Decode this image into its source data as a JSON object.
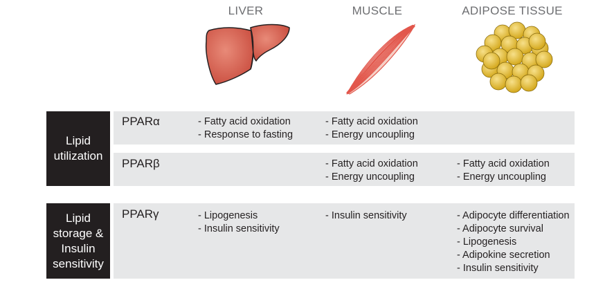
{
  "columns": [
    {
      "key": "liver",
      "title": "LIVER",
      "icon": "liver-icon"
    },
    {
      "key": "muscle",
      "title": "MUSCLE",
      "icon": "muscle-icon"
    },
    {
      "key": "adipose",
      "title": "ADIPOSE TISSUE",
      "icon": "adipose-tissue-icon"
    }
  ],
  "groups": {
    "lipid_utilization": "Lipid\nutilization",
    "lipid_storage": "Lipid\nstorage &\nInsulin\nsensitivity"
  },
  "rows": {
    "alpha": {
      "label": "PPARα",
      "liver": [
        "- Fatty acid oxidation",
        "- Response to fasting"
      ],
      "muscle": [
        "- Fatty acid oxidation",
        "- Energy uncoupling"
      ],
      "adipose": []
    },
    "beta": {
      "label": "PPARβ",
      "liver": [],
      "muscle": [
        "- Fatty acid oxidation",
        "- Energy uncoupling"
      ],
      "adipose": [
        "- Fatty acid oxidation",
        "- Energy uncoupling"
      ]
    },
    "gamma": {
      "label": "PPARγ",
      "liver": [
        "- Lipogenesis",
        "- Insulin sensitivity"
      ],
      "muscle": [
        "- Insulin sensitivity"
      ],
      "adipose": [
        "- Adipocyte differentiation",
        "- Adipocyte survival",
        "- Lipogenesis",
        "- Adipokine secretion",
        "- Insulin sensitivity"
      ]
    }
  },
  "colors": {
    "liver": "#d9604f",
    "muscle": "#e2574c",
    "adipose": "#e7c13a",
    "band": "#e6e7e8",
    "label_bg": "#231f20"
  }
}
